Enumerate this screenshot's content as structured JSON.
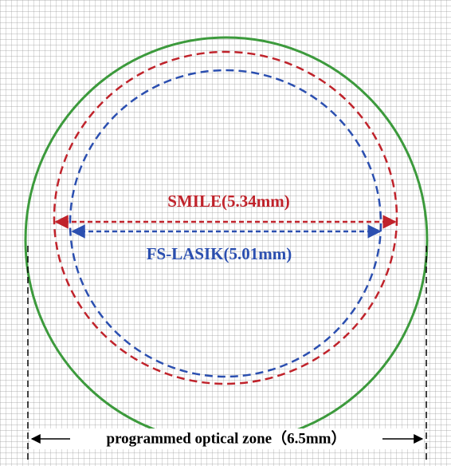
{
  "labels": {
    "smile": "SMILE(5.34mm)",
    "fs_lasik": "FS-LASIK(5.01mm)",
    "optical_zone": "programmed optical zone（6.5mm）"
  }
}
